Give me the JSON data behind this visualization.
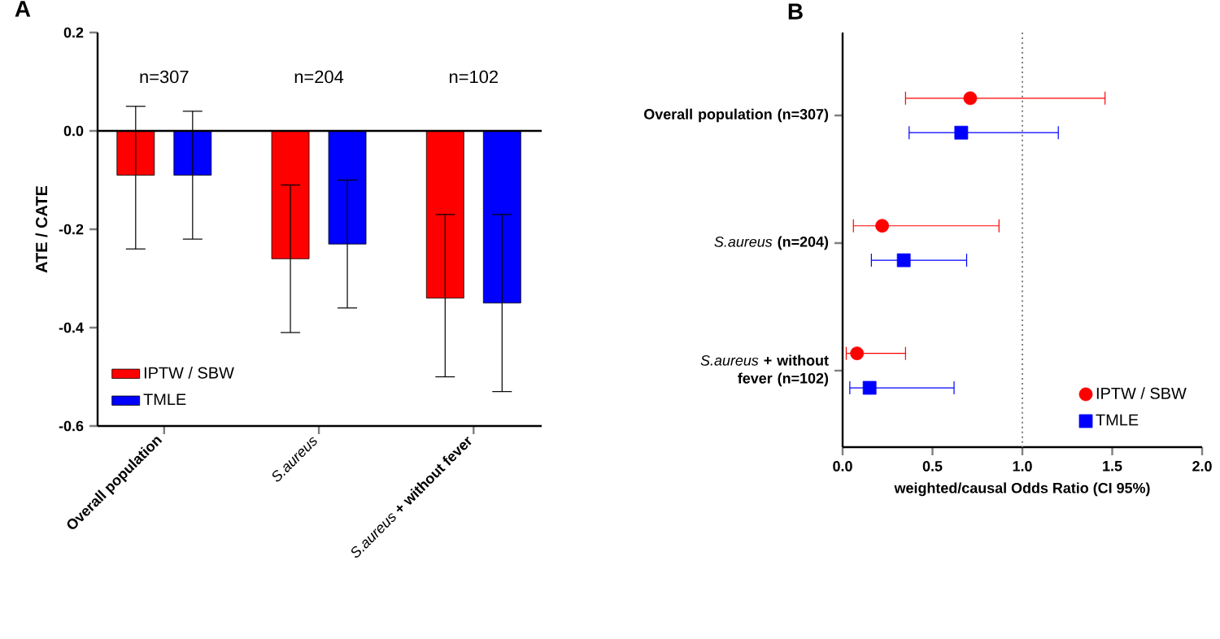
{
  "chart_data": [
    {
      "type": "bar",
      "title": "A",
      "ylabel": "ATE / CATE",
      "categories": [
        "**Overall population**",
        "*S.aureus*",
        "*S.aureus* **+ without fever**"
      ],
      "series": [
        {
          "name": "IPTW / SBW",
          "color": "#ff0000",
          "values": [
            -0.09,
            -0.26,
            -0.34
          ],
          "errors": [
            [
              -0.24,
              0.05
            ],
            [
              -0.41,
              -0.11
            ],
            [
              -0.5,
              -0.17
            ]
          ]
        },
        {
          "name": "TMLE",
          "color": "#0000ff",
          "values": [
            -0.09,
            -0.23,
            -0.35
          ],
          "errors": [
            [
              -0.22,
              0.04
            ],
            [
              -0.36,
              -0.1
            ],
            [
              -0.53,
              -0.17
            ]
          ]
        }
      ],
      "ylim": [
        -0.6,
        0.2
      ],
      "yticks": [
        -0.6,
        -0.4,
        -0.2,
        {
          "value": 0,
          "label": "0.0"
        },
        0.2
      ],
      "annotations": [
        "n=307",
        "n=204",
        "n=102"
      ],
      "legend": "bottom left"
    },
    {
      "type": "scatter",
      "orientation": "horizontal",
      "title": "B",
      "xlabel": "weighted/causal Odds Ratio (CI 95%)",
      "categories": [
        "**Overall population (n=307)**",
        "*S.aureus* **(n=204)**",
        "*S.aureus* **+ without fever (n=102)**"
      ],
      "series": [
        {
          "name": "IPTW / SBW",
          "color": "#ff0000",
          "marker": "circle",
          "values": [
            0.71,
            0.22,
            0.08
          ],
          "errors": [
            [
              0.35,
              1.46
            ],
            [
              0.06,
              0.87
            ],
            [
              0.02,
              0.35
            ]
          ]
        },
        {
          "name": "TMLE",
          "color": "#0000ff",
          "marker": "square",
          "values": [
            0.66,
            0.34,
            0.15
          ],
          "errors": [
            [
              0.37,
              1.2
            ],
            [
              0.16,
              0.69
            ],
            [
              0.04,
              0.62
            ]
          ]
        }
      ],
      "xlim": [
        0,
        2
      ],
      "xticks": [
        {
          "value": 0,
          "label": "0.0"
        },
        0.5,
        {
          "value": 1,
          "label": "1.0"
        },
        1.5,
        {
          "value": 2,
          "label": "2.0"
        }
      ],
      "ref_lines": [
        {
          "axis": "x",
          "value": 1,
          "color": "#808080",
          "line_style": "dotted"
        }
      ],
      "legend": "bottom right"
    }
  ]
}
